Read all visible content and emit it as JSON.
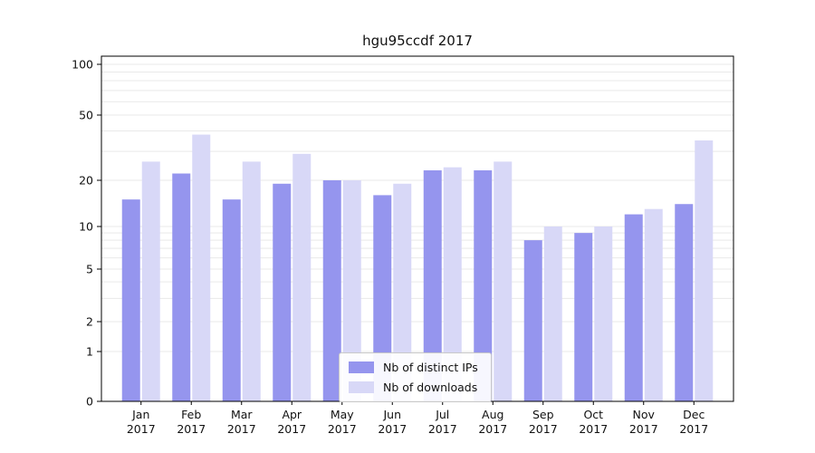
{
  "chart_data": {
    "type": "bar",
    "title": "hgu95ccdf 2017",
    "categories": [
      "Jan 2017",
      "Feb 2017",
      "Mar 2017",
      "Apr 2017",
      "May 2017",
      "Jun 2017",
      "Jul 2017",
      "Aug 2017",
      "Sep 2017",
      "Oct 2017",
      "Nov 2017",
      "Dec 2017"
    ],
    "series": [
      {
        "name": "Nb of distinct IPs",
        "color": "#9595ee",
        "values": [
          15,
          22,
          15,
          19,
          20,
          16,
          23,
          23,
          8,
          9,
          12,
          14
        ]
      },
      {
        "name": "Nb of downloads",
        "color": "#d8d8f7",
        "values": [
          26,
          38,
          26,
          29,
          20,
          19,
          24,
          26,
          10,
          10,
          13,
          35
        ]
      }
    ],
    "yticks": [
      0,
      1,
      2,
      5,
      10,
      20,
      50,
      100
    ],
    "ylim": [
      0,
      100
    ],
    "yscale": "log-like",
    "xlabel": "",
    "ylabel": "",
    "grid": true,
    "grid_values": [
      1,
      2,
      3,
      4,
      5,
      6,
      7,
      8,
      9,
      10,
      20,
      30,
      40,
      50,
      60,
      70,
      80,
      90,
      100
    ],
    "legend_position": "bottom-center"
  },
  "colors": {
    "bar_distinct_ips": "#9595ee",
    "bar_downloads": "#d8d8f7",
    "grid": "#e9e9e9",
    "axis": "#000000",
    "text": "#111111",
    "legend_border": "#c9c9c9"
  }
}
